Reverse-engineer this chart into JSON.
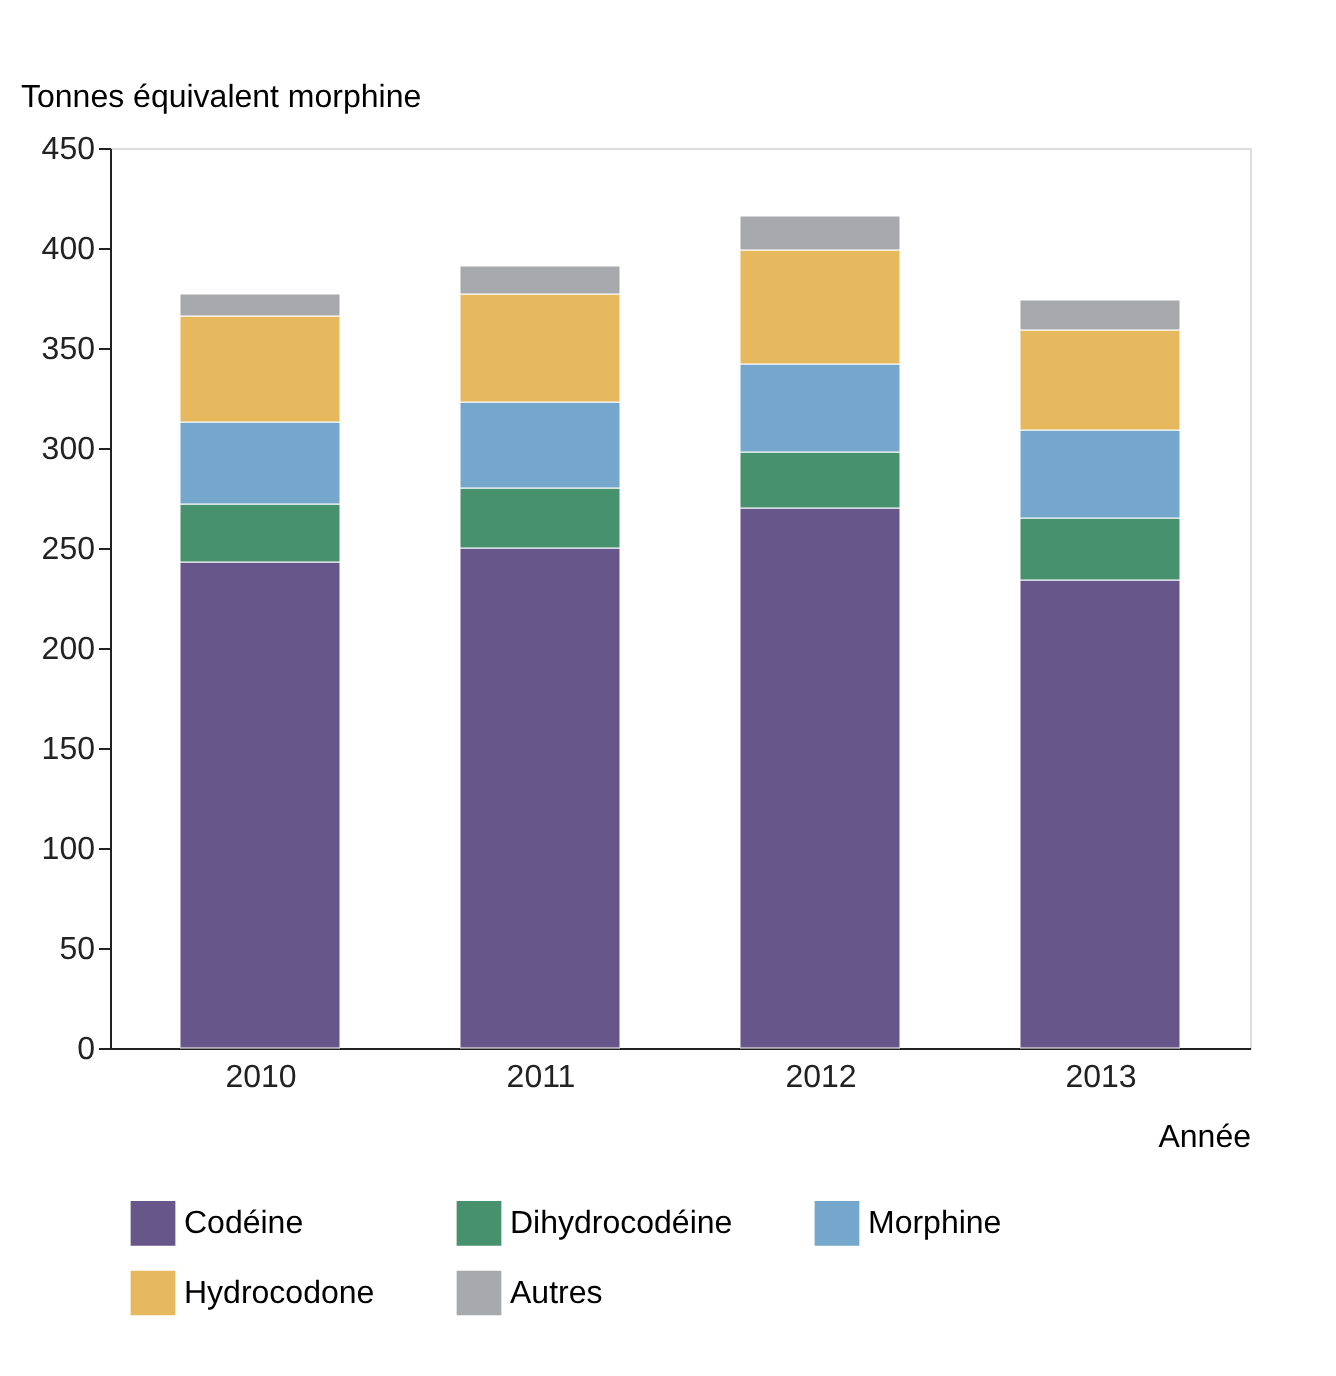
{
  "chart_data": {
    "type": "bar",
    "stacked": true,
    "ylabel": "Tonnes équivalent morphine",
    "xlabel": "Année",
    "categories": [
      "2010",
      "2011",
      "2012",
      "2013"
    ],
    "series": [
      {
        "name": "Codéine",
        "color": "#67568a",
        "values": [
          243,
          250,
          270,
          234
        ]
      },
      {
        "name": "Dihydrocodéine",
        "color": "#48916f",
        "values": [
          29,
          30,
          28,
          31
        ]
      },
      {
        "name": "Morphine",
        "color": "#75a7cc",
        "values": [
          41,
          43,
          44,
          44
        ]
      },
      {
        "name": "Hydrocodone",
        "color": "#e6b95e",
        "values": [
          53,
          54,
          57,
          50
        ]
      },
      {
        "name": "Autres",
        "color": "#a8a9ad",
        "values": [
          11,
          14,
          17,
          15
        ]
      }
    ],
    "ylim": [
      0,
      450
    ],
    "yticks": [
      0,
      50,
      100,
      150,
      200,
      250,
      300,
      350,
      400,
      450
    ],
    "grid": false,
    "legend": "bottom"
  }
}
